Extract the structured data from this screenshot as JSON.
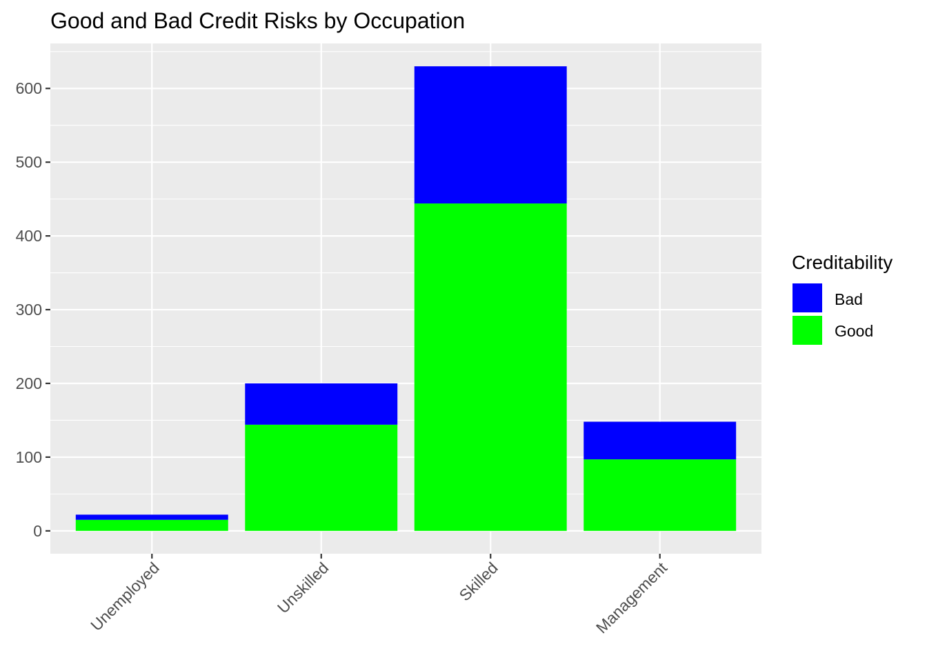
{
  "chart_data": {
    "type": "bar",
    "stacked": true,
    "title": "Good and Bad Credit Risks by Occupation",
    "xlabel": "",
    "ylabel": "",
    "categories": [
      "Unemployed",
      "Unskilled",
      "Skilled",
      "Management"
    ],
    "series": [
      {
        "name": "Good",
        "color": "#00ff00",
        "values": [
          15,
          144,
          444,
          97
        ]
      },
      {
        "name": "Bad",
        "color": "#0000ff",
        "values": [
          7,
          56,
          186,
          51
        ]
      }
    ],
    "ylim": [
      -31,
      661
    ],
    "yticks": [
      0,
      100,
      200,
      300,
      400,
      500,
      600
    ],
    "grid": true,
    "panel_background": "#ebebeb",
    "legend": {
      "title": "Creditability",
      "placement": "right",
      "entries": [
        {
          "label": "Bad",
          "color": "#0000ff"
        },
        {
          "label": "Good",
          "color": "#00ff00"
        }
      ]
    }
  }
}
